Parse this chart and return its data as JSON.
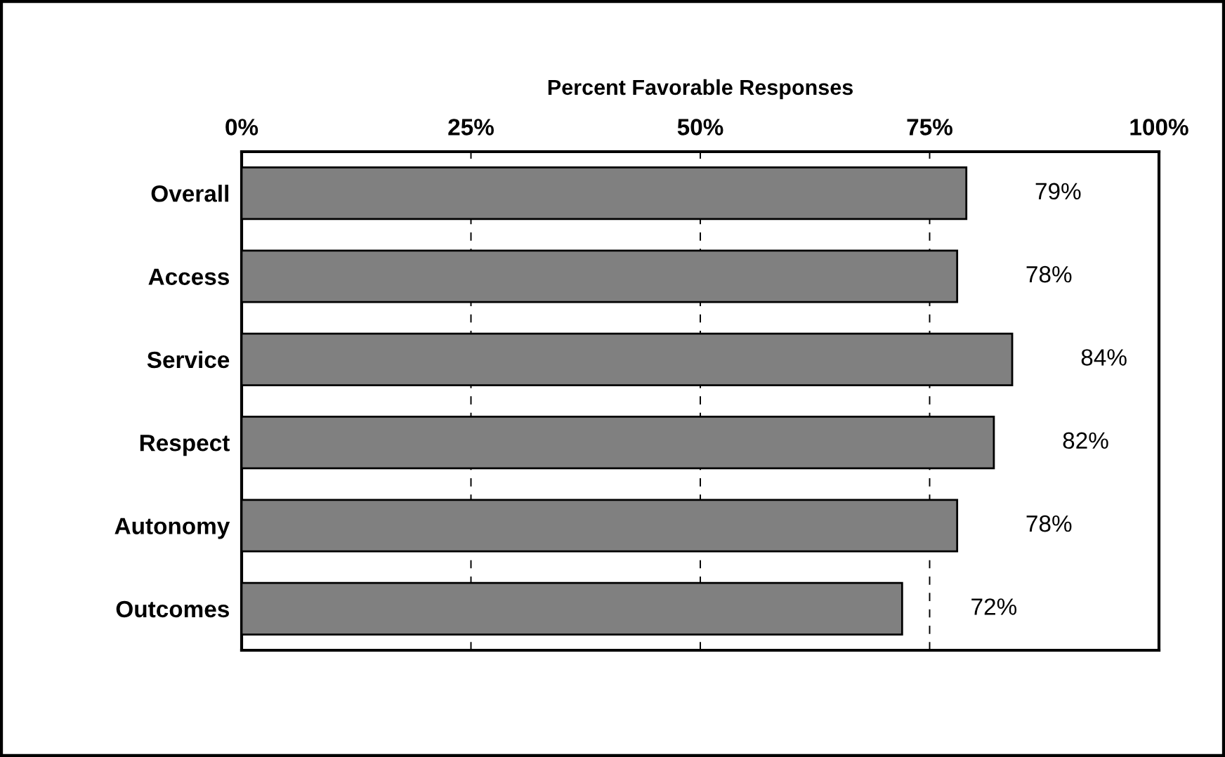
{
  "chart_data": {
    "type": "bar",
    "orientation": "horizontal",
    "xlabel": "Percent Favorable Responses",
    "categories": [
      "Overall",
      "Access",
      "Service",
      "Respect",
      "Autonomy",
      "Outcomes"
    ],
    "values": [
      79,
      78,
      84,
      82,
      78,
      72
    ],
    "color": "#808080",
    "value_labels": [
      "79%",
      "78%",
      "84%",
      "82%",
      "78%",
      "72%"
    ],
    "xlim": [
      0,
      100
    ],
    "xticks": [
      {
        "value": 0,
        "label": "0%"
      },
      {
        "value": 25,
        "label": "25%"
      },
      {
        "value": 50,
        "label": "50%"
      },
      {
        "value": 75,
        "label": "75%"
      },
      {
        "value": 100,
        "label": "100%"
      }
    ],
    "grid": "x",
    "line_style": "dashed"
  }
}
